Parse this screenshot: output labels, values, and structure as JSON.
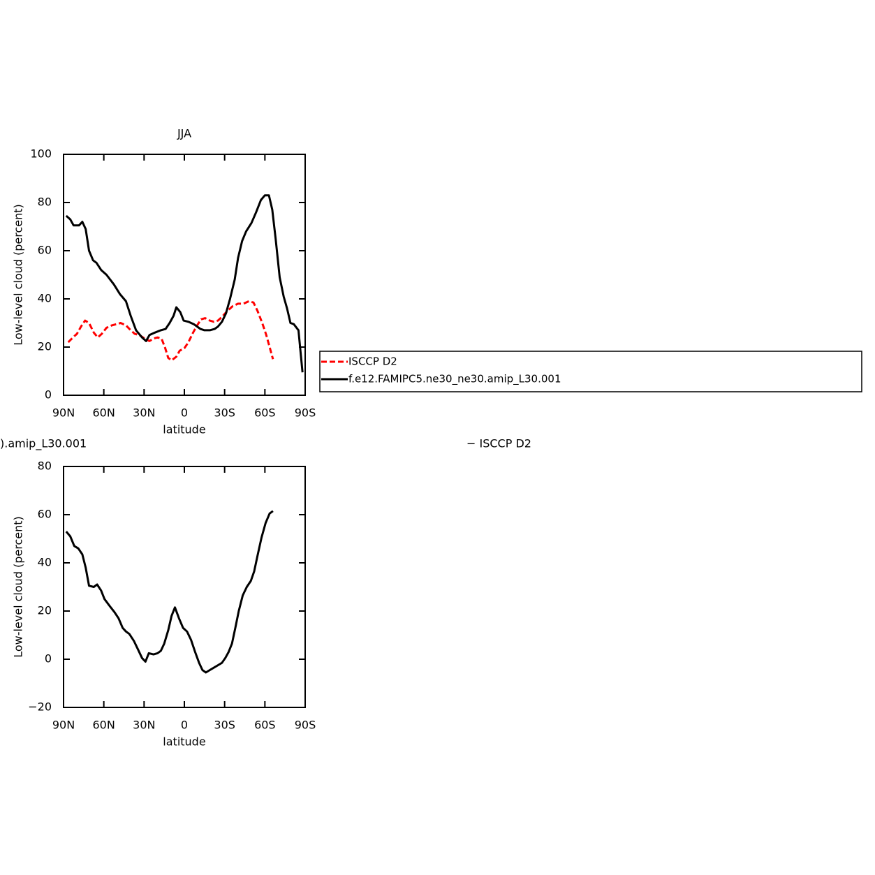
{
  "chart_data": [
    {
      "type": "line",
      "title": "JJA",
      "xlabel": "latitude",
      "ylabel": "Low-level cloud (percent)",
      "legend": "right",
      "xlim": [
        90,
        -90
      ],
      "xticks": [
        {
          "value": 90,
          "label": "90N"
        },
        {
          "value": 60,
          "label": "60N"
        },
        {
          "value": 30,
          "label": "30N"
        },
        0,
        {
          "value": -30,
          "label": "30S"
        },
        {
          "value": -60,
          "label": "60S"
        },
        {
          "value": -90,
          "label": "90S"
        }
      ],
      "ylim": [
        0,
        100
      ],
      "yticks": [
        0,
        20,
        40,
        60,
        80,
        100
      ],
      "series": [
        {
          "name": "ISCCP D2",
          "color": "#ff0000",
          "dashed": true,
          "x": [
            86.5,
            83,
            80,
            77,
            74,
            71,
            67.5,
            64.5,
            61.5,
            58,
            54,
            50.5,
            47.5,
            43.5,
            40,
            37,
            33.5,
            29.5,
            26,
            23,
            20,
            17,
            14.5,
            12,
            9.5,
            6,
            3.5,
            0,
            -3,
            -6.5,
            -9.5,
            -12.5,
            -15.5,
            -19,
            -22,
            -25,
            -28,
            -32,
            -36,
            -40,
            -44,
            -48,
            -51.5,
            -54.5,
            -58,
            -61,
            -63.5,
            -66
          ],
          "values": [
            22,
            24,
            25.5,
            28.5,
            31,
            30,
            26,
            24,
            25.5,
            28,
            29,
            29.5,
            30,
            29,
            27,
            25.5,
            25,
            23.5,
            22.5,
            23.5,
            24,
            23.5,
            20,
            15.5,
            14.5,
            16,
            18.5,
            19.5,
            22,
            26,
            29,
            31.5,
            32,
            31,
            30.5,
            31,
            32.5,
            35,
            37,
            38,
            38,
            39,
            38.5,
            35,
            30,
            25,
            20,
            15
          ]
        },
        {
          "name": "f.e12.FAMIPC5.ne30_ne30.amip_L30.001",
          "color": "#000000",
          "dashed": false,
          "x": [
            88,
            85,
            82.5,
            78.5,
            76,
            73.5,
            71,
            68,
            65.5,
            62,
            58,
            52.5,
            48,
            43.5,
            40,
            36,
            31.5,
            28.5,
            26,
            22,
            17.5,
            14,
            11,
            8,
            6,
            3,
            0.5,
            -3,
            -7,
            -12,
            -15,
            -19,
            -22.5,
            -25,
            -28,
            -31,
            -34,
            -37.5,
            -40,
            -43,
            -46,
            -50,
            -53.5,
            -57,
            -60,
            -63,
            -65.5,
            -68,
            -71,
            -74,
            -76.5,
            -79,
            -81.5,
            -85,
            -88
          ],
          "values": [
            74.5,
            73,
            70.5,
            70.5,
            72,
            69,
            60,
            56,
            55,
            52,
            50,
            46,
            42,
            39,
            33,
            27,
            24,
            22.5,
            25,
            26,
            27,
            27.5,
            30,
            33,
            36.5,
            34.5,
            31,
            30.5,
            29.5,
            27.5,
            27,
            27,
            27.5,
            28.5,
            30.5,
            34,
            40,
            48,
            57,
            64,
            68,
            71.5,
            76,
            81,
            83,
            83,
            77,
            65,
            49,
            41,
            36,
            30,
            29.5,
            27,
            9.5
          ]
        }
      ]
    },
    {
      "type": "line",
      "title_parts": [
        ").amip_L30.001",
        "− ISCCP D2"
      ],
      "xlabel": "latitude",
      "ylabel": "Low-level cloud (percent)",
      "xlim": [
        90,
        -90
      ],
      "xticks": [
        {
          "value": 90,
          "label": "90N"
        },
        {
          "value": 60,
          "label": "60N"
        },
        {
          "value": 30,
          "label": "30N"
        },
        0,
        {
          "value": -30,
          "label": "30S"
        },
        {
          "value": -60,
          "label": "60S"
        },
        {
          "value": -90,
          "label": "90S"
        }
      ],
      "ylim": [
        -20,
        80
      ],
      "yticks": [
        {
          "value": -20,
          "label": "−20"
        },
        0,
        20,
        40,
        60,
        80
      ],
      "series": [
        {
          "color": "#000000",
          "dashed": false,
          "x": [
            88,
            85,
            82,
            79,
            76,
            73.5,
            71,
            67.5,
            65,
            62,
            59.5,
            55.5,
            52,
            49,
            46,
            43.5,
            41,
            37.5,
            34.5,
            31.5,
            29,
            26.5,
            23,
            20,
            17.5,
            15,
            12,
            9.5,
            7,
            4,
            1,
            -2,
            -5,
            -8,
            -11,
            -13.5,
            -16,
            -19,
            -22,
            -25,
            -28,
            -30.5,
            -33,
            -35.5,
            -38,
            -40.5,
            -43.5,
            -46.5,
            -49.5,
            -52,
            -54.5,
            -57.5,
            -60.5,
            -63.5,
            -66
          ],
          "values": [
            53,
            51,
            47,
            46,
            43.5,
            38,
            30.5,
            30,
            31,
            28.5,
            25,
            22,
            19.5,
            17,
            13,
            11.5,
            10.5,
            7.5,
            4,
            0.5,
            -1,
            2.5,
            2,
            2.5,
            3.5,
            6.5,
            12,
            18,
            21.5,
            17,
            13,
            11.5,
            8,
            3,
            -1.5,
            -4.5,
            -5.5,
            -4.5,
            -3.5,
            -2.5,
            -1.5,
            0.5,
            3,
            6.5,
            13,
            20,
            26.5,
            30,
            32.5,
            36.5,
            43,
            50.5,
            56.5,
            60.5,
            61.5
          ]
        }
      ]
    }
  ]
}
